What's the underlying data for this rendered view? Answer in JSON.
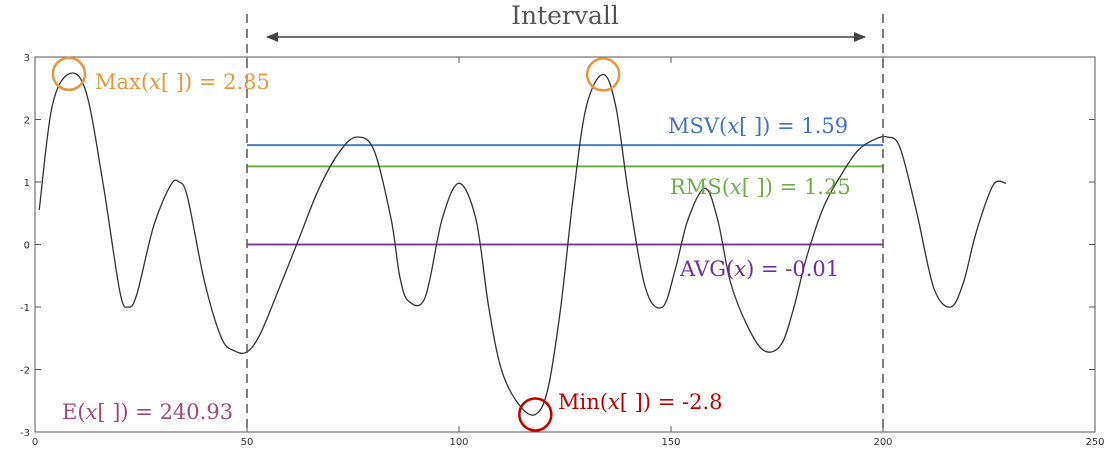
{
  "chart_data": {
    "type": "line",
    "xlim": [
      0,
      250
    ],
    "ylim": [
      -3,
      3
    ],
    "x_ticks": [
      "0",
      "50",
      "100",
      "150",
      "200",
      "250"
    ],
    "y_ticks": [
      "3",
      "2",
      "1",
      "0",
      "-1",
      "-2",
      "-3"
    ],
    "grid": false,
    "interval": {
      "label": "Intervall",
      "start": 50,
      "end": 200
    },
    "series": [
      {
        "x": [
          1,
          4,
          8,
          12,
          16,
          20,
          22,
          24,
          28,
          32,
          34,
          36,
          40,
          44,
          47,
          50,
          53,
          57,
          62,
          67,
          72,
          76,
          80,
          84,
          86,
          88,
          92,
          96,
          100,
          104,
          107,
          110,
          114,
          118,
          121,
          124,
          127,
          130,
          134,
          137,
          140,
          144,
          148,
          151,
          154,
          158,
          161,
          164,
          168,
          172,
          176,
          179,
          182,
          186,
          190,
          194,
          198,
          201,
          204,
          208,
          212,
          216,
          219,
          222,
          226,
          229
        ],
        "y": [
          0.55,
          2.2,
          2.73,
          2.45,
          1.0,
          -0.75,
          -1.0,
          -0.8,
          0.3,
          0.95,
          1.0,
          0.75,
          -0.6,
          -1.5,
          -1.7,
          -1.72,
          -1.45,
          -0.8,
          0.05,
          0.9,
          1.5,
          1.72,
          1.5,
          0.4,
          -0.5,
          -0.9,
          -0.85,
          0.4,
          0.98,
          0.4,
          -1.0,
          -2.0,
          -2.55,
          -2.72,
          -2.3,
          -1.0,
          0.8,
          2.2,
          2.72,
          2.2,
          0.8,
          -0.7,
          -1.0,
          -0.4,
          0.4,
          0.9,
          0.4,
          -0.6,
          -1.3,
          -1.7,
          -1.6,
          -1.0,
          -0.2,
          0.6,
          1.1,
          1.5,
          1.68,
          1.72,
          1.55,
          0.5,
          -0.7,
          -1.0,
          -0.6,
          0.2,
          0.95,
          0.98
        ]
      }
    ],
    "hlines": [
      {
        "label": "MSV",
        "y": 1.59,
        "color": "#4f81bd"
      },
      {
        "label": "RMS",
        "y": 1.25,
        "color": "#70ad47"
      },
      {
        "label": "AVG",
        "y": 0.0,
        "color": "#7f3f98"
      }
    ],
    "markers": [
      {
        "x": 8,
        "y": 2.73,
        "color": "#e8973a"
      },
      {
        "x": 134,
        "y": 2.72,
        "color": "#e8973a"
      },
      {
        "x": 118,
        "y": -2.72,
        "color": "#c00000"
      }
    ],
    "annotations": {
      "max": {
        "pre": "Max(",
        "var": "x",
        "post": "[ ]) = 2.85",
        "color": "#e8973a"
      },
      "msv": {
        "pre": "MSV(",
        "var": "x",
        "post": "[ ]) =  1.59",
        "color": "#4472c4"
      },
      "rms": {
        "pre": "RMS(",
        "var": "x",
        "post": "[ ]) =  1.25",
        "color": "#70ad47"
      },
      "avg": {
        "pre": "AVG(",
        "var": "x",
        "post": ") = -0.01",
        "color": "#7030a0"
      },
      "min": {
        "pre": "Min(",
        "var": "x",
        "post": "[ ]) = -2.8",
        "color": "#c00000"
      },
      "energy": {
        "pre": "E(",
        "var": "x",
        "post": "[ ]) = 240.93",
        "color": "#9e4b7b"
      }
    }
  }
}
